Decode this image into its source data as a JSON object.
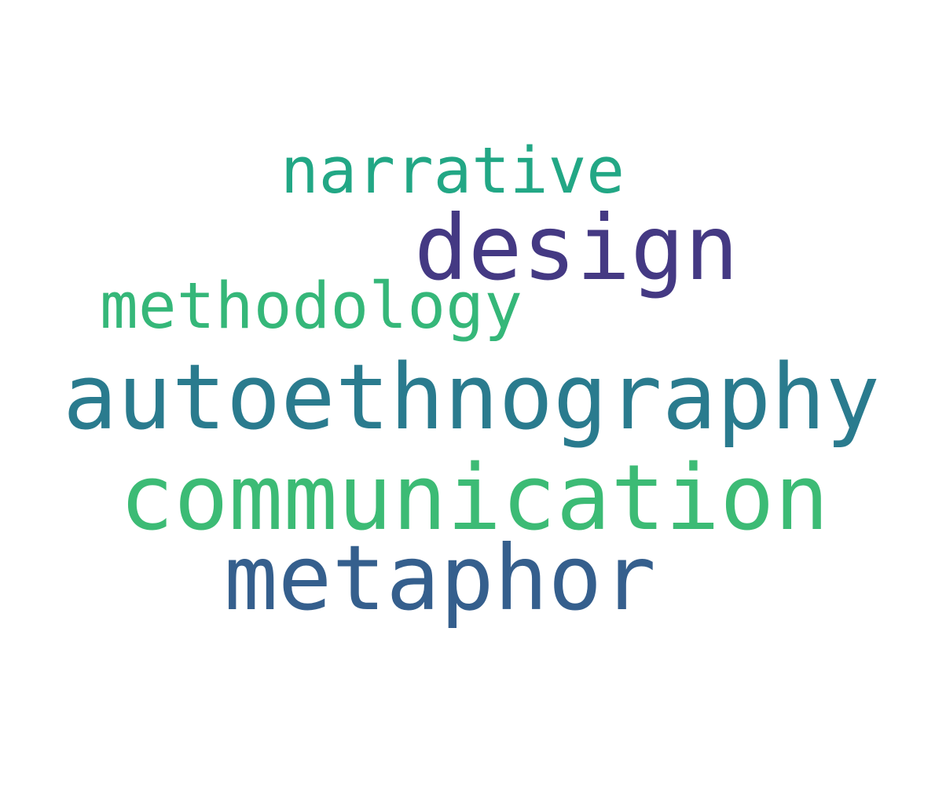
{
  "words": [
    {
      "text": "narrative",
      "color": "#22a785"
    },
    {
      "text": "design",
      "color": "#443983"
    },
    {
      "text": "methodology",
      "color": "#35b779"
    },
    {
      "text": "autoethnography",
      "color": "#2a7b8e"
    },
    {
      "text": "communication",
      "color": "#3cbb75"
    },
    {
      "text": "metaphor",
      "color": "#355f8d"
    }
  ]
}
